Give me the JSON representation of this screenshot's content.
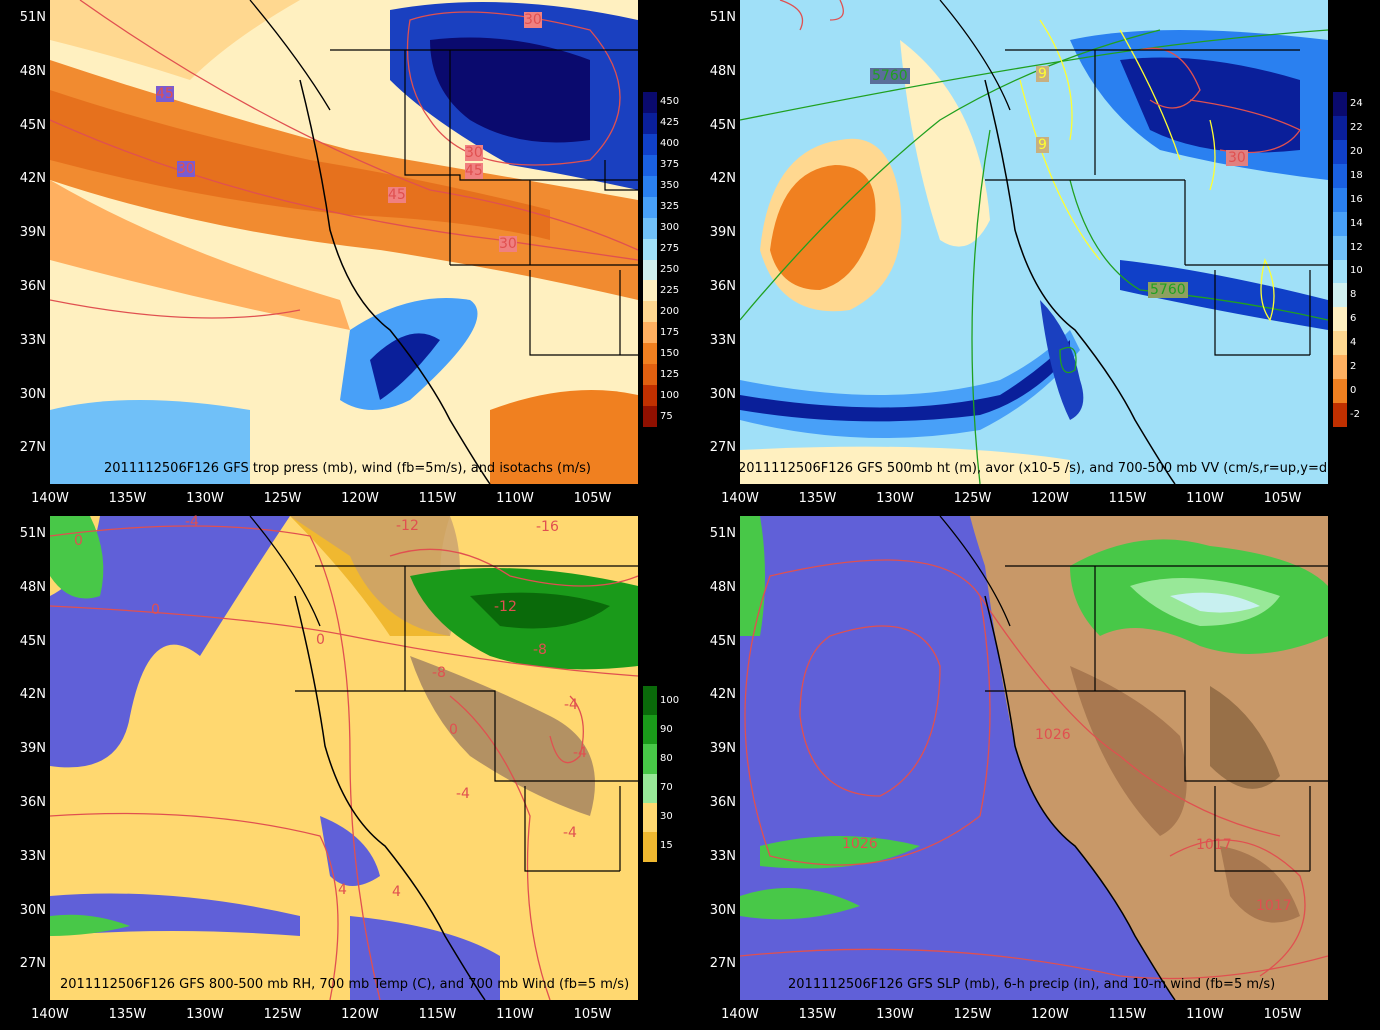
{
  "panels": [
    {
      "id": "p1",
      "caption": "2011112506F126 GFS trop press (mb), wind (fb=5m/s), and isotachs (m/s)",
      "lat_labels": [
        "51N",
        "48N",
        "45N",
        "42N",
        "39N",
        "36N",
        "33N",
        "30N",
        "27N"
      ],
      "lon_labels": [
        "140W",
        "135W",
        "130W",
        "125W",
        "120W",
        "115W",
        "110W",
        "105W"
      ],
      "colorbar": [
        "450",
        "425",
        "400",
        "375",
        "350",
        "325",
        "300",
        "275",
        "250",
        "225",
        "200",
        "175",
        "150",
        "125",
        "100",
        "75"
      ],
      "colorbar_colors": [
        "#0a0a6e",
        "#0a1f9a",
        "#1040c8",
        "#1a60e0",
        "#2a80f0",
        "#48a0f8",
        "#70c0f8",
        "#a0e0f8",
        "#d0f0f0",
        "#fff0c0",
        "#ffd890",
        "#ffb060",
        "#f08020",
        "#e06010",
        "#c03000",
        "#901000"
      ],
      "contour_labels": [
        "30",
        "45",
        "30",
        "45",
        "30",
        "45",
        "30"
      ]
    },
    {
      "id": "p2",
      "caption": "2011112506F126 GFS 500mb ht (m), avor (x10-5 /s), and 700-500 mb VV (cm/s,r=up,y=dn)",
      "lat_labels": [
        "51N",
        "48N",
        "45N",
        "42N",
        "39N",
        "36N",
        "33N",
        "30N",
        "27N"
      ],
      "lon_labels": [
        "140W",
        "135W",
        "130W",
        "125W",
        "120W",
        "115W",
        "110W",
        "105W"
      ],
      "colorbar": [
        "24",
        "22",
        "20",
        "18",
        "16",
        "14",
        "12",
        "10",
        "8",
        "6",
        "4",
        "2",
        "0",
        "-2"
      ],
      "colorbar_colors": [
        "#0a0a6e",
        "#0a1f9a",
        "#1040c8",
        "#1a60e0",
        "#2a80f0",
        "#48a0f8",
        "#70c0f8",
        "#a0e0f8",
        "#d0f0f0",
        "#fff0c0",
        "#ffd890",
        "#ffb060",
        "#f08020",
        "#c03000"
      ],
      "contour_labels": [
        "5760",
        "9",
        "9",
        "5760",
        "30"
      ]
    },
    {
      "id": "p3",
      "caption": "2011112506F126 GFS 800-500 mb RH, 700 mb Temp (C), and 700 mb Wind (fb=5 m/s)",
      "lat_labels": [
        "51N",
        "48N",
        "45N",
        "42N",
        "39N",
        "36N",
        "33N",
        "30N",
        "27N"
      ],
      "lon_labels": [
        "140W",
        "135W",
        "130W",
        "125W",
        "120W",
        "115W",
        "110W",
        "105W"
      ],
      "colorbar": [
        "100",
        "90",
        "80",
        "70",
        "30",
        "15"
      ],
      "colorbar_colors": [
        "#0a6a0a",
        "#1a9a1a",
        "#48c848",
        "#98e898",
        "#ffd870",
        "#f0b830"
      ],
      "contour_labels": [
        "0",
        "0",
        "-4",
        "0",
        "-12",
        "-16",
        "-12",
        "-8",
        "-8",
        "-4",
        "0",
        "-4",
        "-4",
        "-4",
        "4",
        "4"
      ]
    },
    {
      "id": "p4",
      "caption": "2011112506F126 GFS SLP (mb), 6-h precip (in), and 10-m wind (fb=5 m/s)",
      "lat_labels": [
        "51N",
        "48N",
        "45N",
        "42N",
        "39N",
        "36N",
        "33N",
        "30N",
        "27N"
      ],
      "lon_labels": [
        "140W",
        "135W",
        "130W",
        "125W",
        "120W",
        "115W",
        "110W",
        "105W"
      ],
      "contour_labels": [
        "1026",
        "1026",
        "1017",
        "1017"
      ]
    }
  ]
}
